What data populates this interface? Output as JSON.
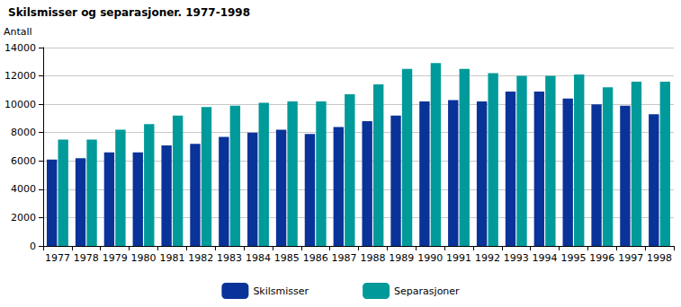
{
  "chart_data": {
    "type": "bar",
    "title": "Skilsmisser og separasjoner. 1977-1998",
    "y_label": "Antall",
    "categories": [
      "1977",
      "1978",
      "1979",
      "1980",
      "1981",
      "1982",
      "1983",
      "1984",
      "1985",
      "1986",
      "1987",
      "1988",
      "1989",
      "1990",
      "1991",
      "1992",
      "1993",
      "1994",
      "1995",
      "1996",
      "1997",
      "1998"
    ],
    "series": [
      {
        "name": "Skilsmisser",
        "color": "#0a3399",
        "values": [
          6100,
          6200,
          6600,
          6600,
          7100,
          7200,
          7700,
          8000,
          8200,
          7900,
          8400,
          8800,
          9200,
          10200,
          10300,
          10200,
          10900,
          10900,
          10400,
          10000,
          9900,
          9300
        ]
      },
      {
        "name": "Separasjoner",
        "color": "#009a9a",
        "values": [
          7500,
          7500,
          8200,
          8600,
          9200,
          9800,
          9900,
          10100,
          10200,
          10200,
          10700,
          11400,
          12500,
          12900,
          12500,
          12200,
          12000,
          12000,
          12100,
          11200,
          11600,
          11600
        ]
      }
    ],
    "ylim": [
      0,
      14000
    ],
    "yticks": [
      0,
      2000,
      4000,
      6000,
      8000,
      10000,
      12000,
      14000
    ],
    "grid": true,
    "legend": "bottom"
  }
}
